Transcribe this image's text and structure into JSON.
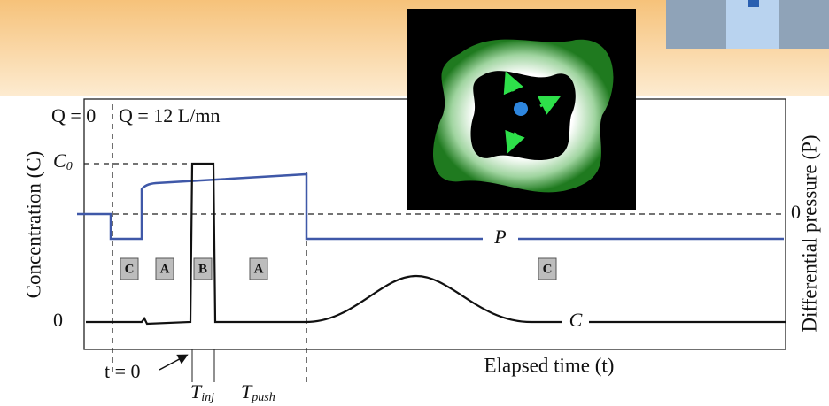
{
  "figure": {
    "flow_before": "Q = 0",
    "flow_after": "Q = 12 L/mn",
    "left_axis_title": "Concentration (C)",
    "left_top_tick": {
      "main": "C",
      "sub": "0"
    },
    "left_zero_tick": "0",
    "right_axis_title": "Differential pressure (P)",
    "right_zero_tick": "0",
    "phases": [
      "C",
      "A",
      "B",
      "A",
      "C"
    ],
    "pressure_curve_label": "P",
    "concentration_curve_label": "C",
    "start_label": "t = 0",
    "injection_time": {
      "main": "T",
      "sub": "inj"
    },
    "push_time": {
      "main": "T",
      "sub": "push"
    },
    "x_axis_title": "Elapsed time (t)"
  }
}
